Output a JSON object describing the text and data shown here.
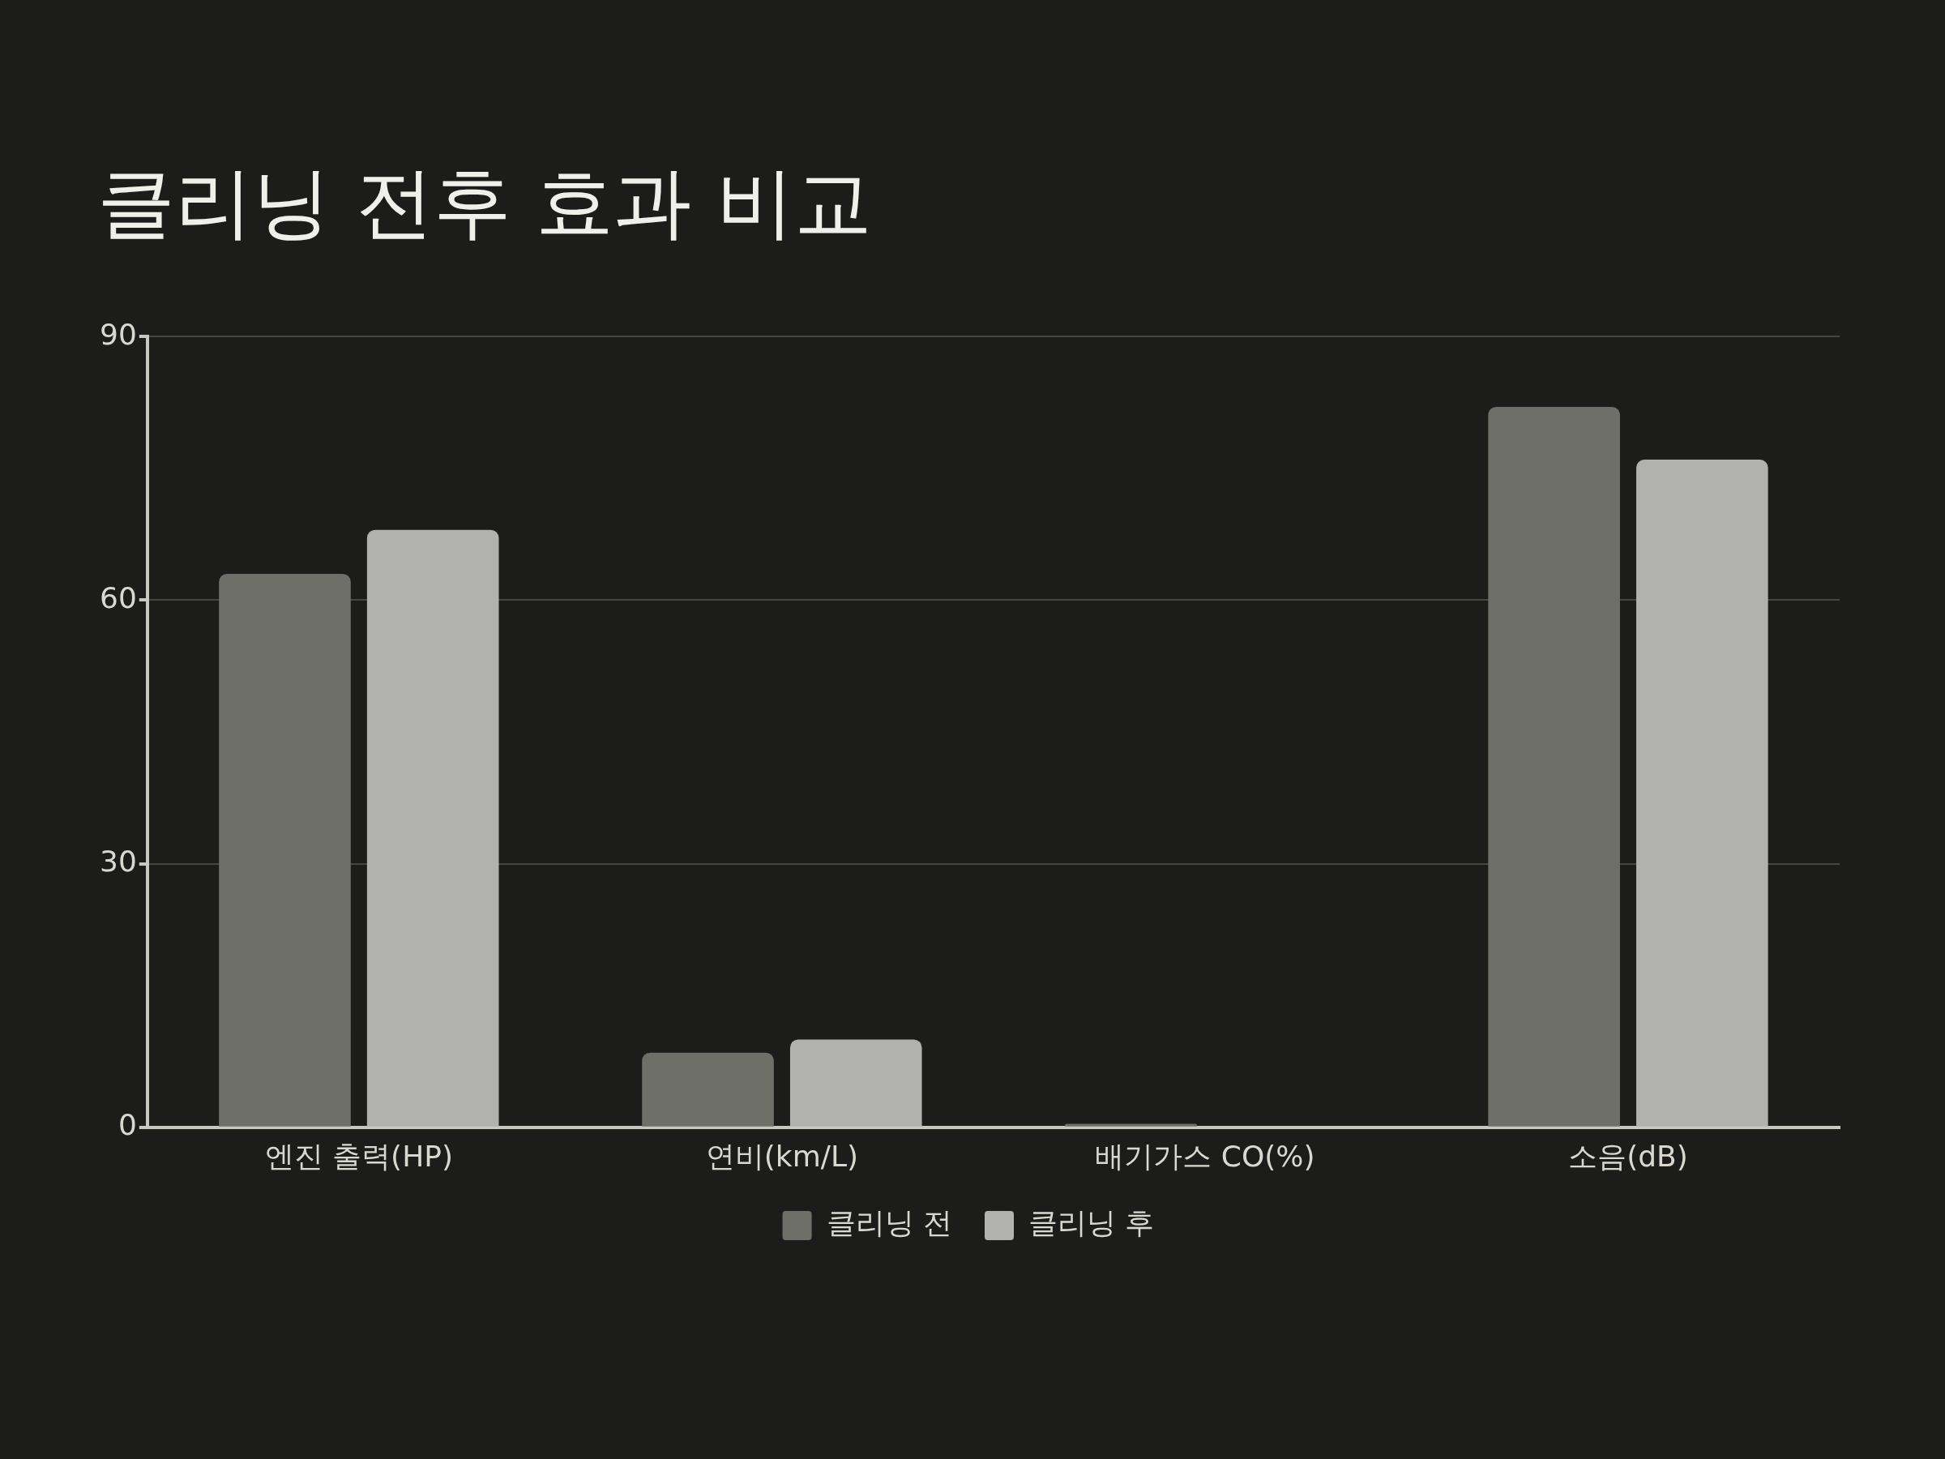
{
  "chart_data": {
    "type": "bar",
    "title": "클리닝 전후 효과 비교",
    "categories": [
      "엔진 출력(HP)",
      "연비(km/L)",
      "배기가스 CO(%)",
      "소음(dB)"
    ],
    "series": [
      {
        "name": "클리닝 전",
        "color": "#6f6f69",
        "values": [
          63,
          8.5,
          0.4,
          82
        ]
      },
      {
        "name": "클리닝 후",
        "color": "#b1b2ad",
        "values": [
          68,
          10,
          0.1,
          76
        ]
      }
    ],
    "ylim": [
      0,
      90
    ],
    "yticks": [
      0,
      30,
      60,
      90
    ],
    "grid": "y",
    "legend": "bottom"
  }
}
